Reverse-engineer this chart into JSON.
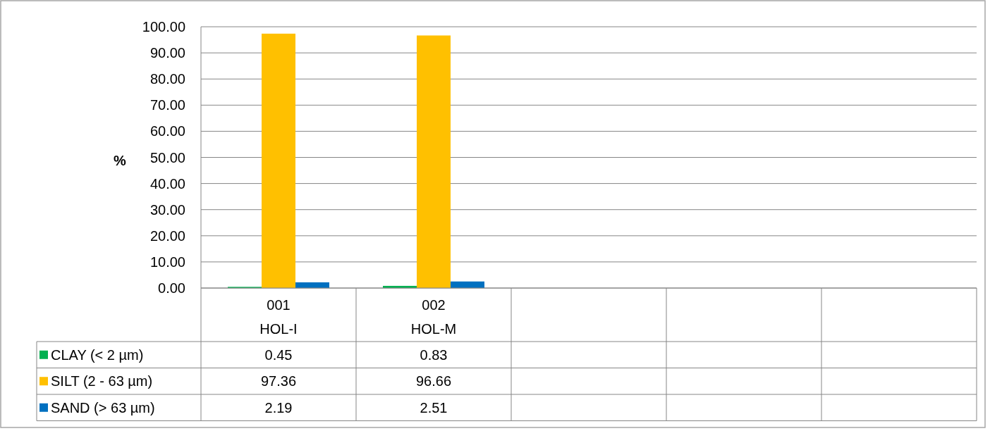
{
  "chart_data": {
    "type": "bar",
    "ylabel": "%",
    "categories": [
      "001\nHOL-I",
      "002\nHOL-M",
      null,
      null,
      null
    ],
    "series": [
      {
        "name": "CLAY (< 2 µm)",
        "color": "#00b050",
        "values": [
          0.45,
          0.83,
          null,
          null,
          null
        ]
      },
      {
        "name": "SILT (2 - 63 µm)",
        "color": "#ffc000",
        "values": [
          97.36,
          96.66,
          null,
          null,
          null
        ]
      },
      {
        "name": "SAND (> 63 µm)",
        "color": "#0070c0",
        "values": [
          2.19,
          2.51,
          null,
          null,
          null
        ]
      }
    ],
    "ylim": [
      0,
      100
    ],
    "yticks": [
      {
        "value": 0,
        "label": "0.00"
      },
      {
        "value": 10,
        "label": "10.00"
      },
      {
        "value": 20,
        "label": "20.00"
      },
      {
        "value": 30,
        "label": "30.00"
      },
      {
        "value": 40,
        "label": "40.00"
      },
      {
        "value": 50,
        "label": "50.00"
      },
      {
        "value": 60,
        "label": "60.00"
      },
      {
        "value": 70,
        "label": "70.00"
      },
      {
        "value": 80,
        "label": "80.00"
      },
      {
        "value": 90,
        "label": "90.00"
      },
      {
        "value": 100,
        "label": "100.00"
      }
    ],
    "grid": "y",
    "legend": "bottom left",
    "data_labels": true
  }
}
